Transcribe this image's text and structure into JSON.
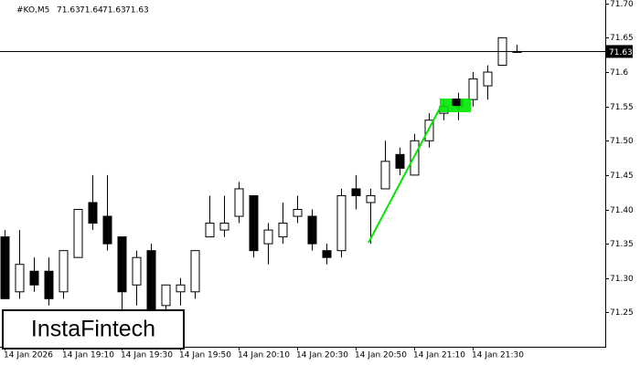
{
  "chart_data": {
    "type": "candlestick",
    "symbol": "#KO,M5",
    "categories": [
      "14 Jan 2026",
      null,
      null,
      null,
      "14 Jan 19:10",
      null,
      null,
      null,
      "14 Jan 19:30",
      null,
      null,
      null,
      "14 Jan 19:50",
      null,
      null,
      null,
      "14 Jan 20:10",
      null,
      null,
      null,
      "14 Jan 20:30",
      null,
      null,
      null,
      "14 Jan 20:50",
      null,
      null,
      null,
      "14 Jan 21:10",
      null,
      null,
      null,
      "14 Jan 21:30",
      null,
      null,
      null
    ],
    "open": [
      71.36,
      71.28,
      71.31,
      71.31,
      71.28,
      71.33,
      71.41,
      71.39,
      71.36,
      71.29,
      71.34,
      71.26,
      71.28,
      71.28,
      71.36,
      71.37,
      71.39,
      71.42,
      71.35,
      71.36,
      71.39,
      71.39,
      71.34,
      71.34,
      71.43,
      71.41,
      71.43,
      71.48,
      71.45,
      71.5,
      71.54,
      71.56,
      71.56,
      71.58,
      71.61,
      71.63
    ],
    "high": [
      71.37,
      71.37,
      71.33,
      71.33,
      71.34,
      71.4,
      71.45,
      71.45,
      71.36,
      71.34,
      71.35,
      71.29,
      71.3,
      71.34,
      71.42,
      71.42,
      71.44,
      71.42,
      71.38,
      71.41,
      71.42,
      71.4,
      71.35,
      71.43,
      71.45,
      71.43,
      71.5,
      71.49,
      71.51,
      71.54,
      71.56,
      71.57,
      71.6,
      71.61,
      71.65,
      71.64
    ],
    "low": [
      71.27,
      71.27,
      71.28,
      71.26,
      71.27,
      71.33,
      71.37,
      71.34,
      71.25,
      71.26,
      71.22,
      71.24,
      71.26,
      71.27,
      71.36,
      71.36,
      71.38,
      71.33,
      71.32,
      71.35,
      71.38,
      71.34,
      71.32,
      71.33,
      71.4,
      71.35,
      71.43,
      71.45,
      71.45,
      71.49,
      71.53,
      71.53,
      71.55,
      71.56,
      71.61,
      71.63
    ],
    "close": [
      71.27,
      71.32,
      71.29,
      71.27,
      71.34,
      71.4,
      71.38,
      71.35,
      71.28,
      71.33,
      71.25,
      71.29,
      71.29,
      71.34,
      71.38,
      71.38,
      71.43,
      71.34,
      71.37,
      71.38,
      71.4,
      71.35,
      71.33,
      71.42,
      71.42,
      71.42,
      71.47,
      71.46,
      71.5,
      71.53,
      71.55,
      71.55,
      71.59,
      71.6,
      71.65,
      71.63
    ],
    "up_color": "#ffffff",
    "down_color": "#000000",
    "ylim": [
      71.2,
      71.705
    ],
    "yticks": [
      {
        "value": 71.7,
        "label": "71.70"
      },
      71.65,
      71.6,
      71.55,
      {
        "value": 71.5,
        "label": "71.50"
      },
      71.45,
      {
        "value": 71.4,
        "label": "71.40"
      },
      71.35,
      {
        "value": 71.3,
        "label": "71.30"
      },
      71.25
    ],
    "current_price": 71.63,
    "watermark": "InstaFintech"
  }
}
